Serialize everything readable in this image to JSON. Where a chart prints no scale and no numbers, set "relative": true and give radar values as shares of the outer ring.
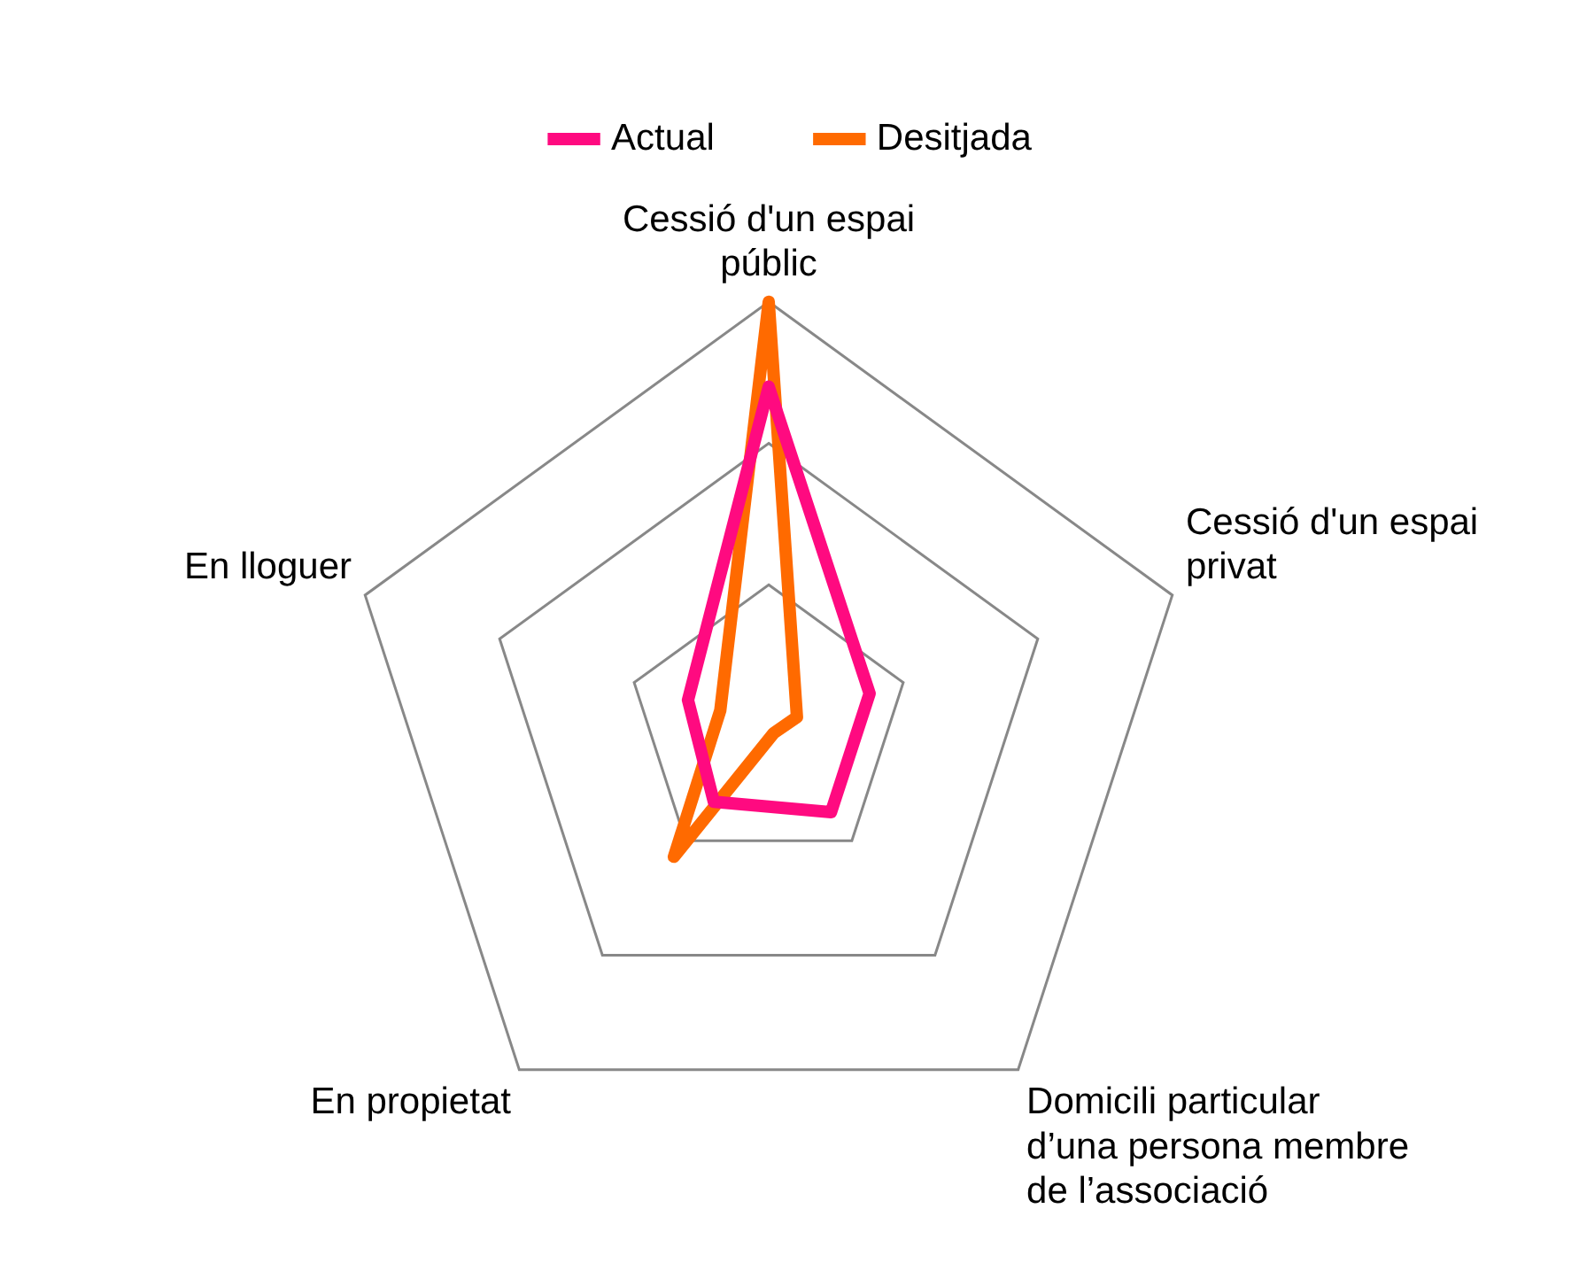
{
  "chart_data": {
    "type": "radar",
    "relative": true,
    "categories": [
      "Cessió d'un espai públic",
      "Cessió d'un espai privat",
      "Domicili particular d’una persona membre de l’associació",
      "En propietat",
      "En lloguer"
    ],
    "series": [
      {
        "name": "Actual",
        "color": "#ff0a80",
        "values": [
          0.8,
          0.25,
          0.25,
          0.22,
          0.2
        ]
      },
      {
        "name": "Desitjada",
        "color": "#ff6a00",
        "values": [
          1.0,
          0.07,
          0.02,
          0.38,
          0.12
        ]
      }
    ],
    "grid": true,
    "legend": "top",
    "marker": "none"
  }
}
